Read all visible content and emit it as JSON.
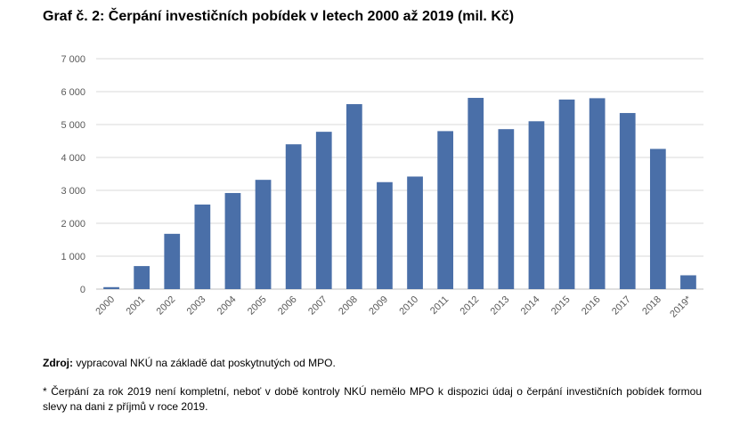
{
  "title": "Graf č. 2: Čerpání investičních pobídek v letech 2000 až 2019 (mil. Kč)",
  "source_label": "Zdroj:",
  "source_text": " vypracoval NKÚ na základě dat poskytnutých od MPO.",
  "note": "* Čerpání za rok 2019 není kompletní, neboť v době kontroly NKÚ nemělo MPO k dispozici údaj o čerpání investičních pobídek formou slevy na dani z příjmů v roce 2019.",
  "colors": {
    "bar": "#4a6fa8",
    "grid": "#d9d9d9",
    "axis_text": "#595959"
  },
  "chart_data": {
    "type": "bar",
    "title": "Graf č. 2: Čerpání investičních pobídek v letech 2000 až 2019 (mil. Kč)",
    "xlabel": "",
    "ylabel": "",
    "categories": [
      "2000",
      "2001",
      "2002",
      "2003",
      "2004",
      "2005",
      "2006",
      "2007",
      "2008",
      "2009",
      "2010",
      "2011",
      "2012",
      "2013",
      "2014",
      "2015",
      "2016",
      "2017",
      "2018",
      "2019*"
    ],
    "values": [
      60,
      700,
      1680,
      2570,
      2920,
      3320,
      4400,
      4780,
      5620,
      3250,
      3420,
      4800,
      5810,
      4860,
      5100,
      5760,
      5800,
      5350,
      4260,
      420
    ],
    "ylim": [
      0,
      7000
    ],
    "yticks": [
      0,
      1000,
      2000,
      3000,
      4000,
      5000,
      6000,
      7000
    ],
    "ytick_labels": [
      "0",
      "1 000",
      "2 000",
      "3 000",
      "4 000",
      "5 000",
      "6 000",
      "7 000"
    ],
    "grid": true,
    "legend": "none"
  }
}
